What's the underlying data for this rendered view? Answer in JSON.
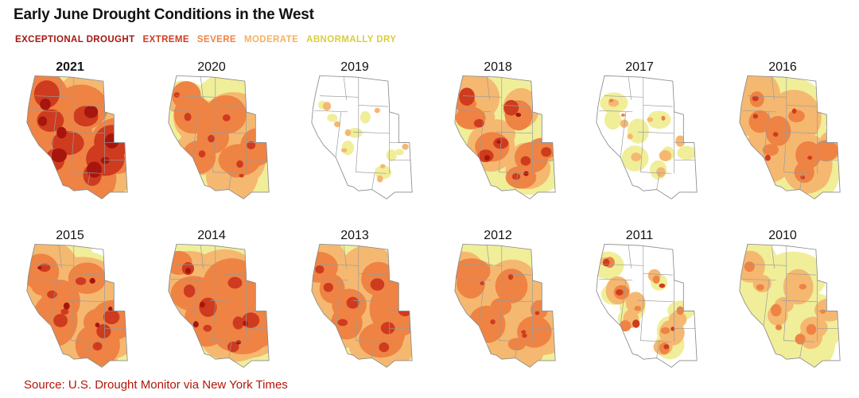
{
  "title": "Early June Drought Conditions in the West",
  "legend": [
    {
      "label": "EXCEPTIONAL DROUGHT",
      "color": "#a6160e"
    },
    {
      "label": "EXTREME",
      "color": "#cf3b1e"
    },
    {
      "label": "SEVERE",
      "color": "#ee8344"
    },
    {
      "label": "MODERATE",
      "color": "#f3b163"
    },
    {
      "label": "ABNORMALLY DRY",
      "color": "#d8ce3f"
    }
  ],
  "fill_colors": {
    "exceptional": "#a6160e",
    "extreme": "#cf3b1e",
    "severe": "#ee8344",
    "moderate": "#f5b870",
    "dry": "#f0ee99"
  },
  "years": [
    {
      "year": "2021",
      "current": true,
      "levels": {
        "dry": 0.98,
        "moderate": 0.95,
        "severe": 0.9,
        "extreme": 0.75,
        "exceptional": 0.45
      }
    },
    {
      "year": "2020",
      "current": false,
      "levels": {
        "dry": 0.85,
        "moderate": 0.7,
        "severe": 0.55,
        "extreme": 0.2,
        "exceptional": 0
      }
    },
    {
      "year": "2019",
      "current": false,
      "levels": {
        "dry": 0.14,
        "moderate": 0.08,
        "severe": 0.04,
        "extreme": 0,
        "exceptional": 0
      }
    },
    {
      "year": "2018",
      "current": false,
      "levels": {
        "dry": 0.75,
        "moderate": 0.6,
        "severe": 0.45,
        "extreme": 0.3,
        "exceptional": 0.15
      }
    },
    {
      "year": "2017",
      "current": false,
      "levels": {
        "dry": 0.22,
        "moderate": 0.12,
        "severe": 0.06,
        "extreme": 0,
        "exceptional": 0
      }
    },
    {
      "year": "2016",
      "current": false,
      "levels": {
        "dry": 0.8,
        "moderate": 0.55,
        "severe": 0.35,
        "extreme": 0.15,
        "exceptional": 0.08
      }
    },
    {
      "year": "2015",
      "current": false,
      "levels": {
        "dry": 0.95,
        "moderate": 0.85,
        "severe": 0.6,
        "extreme": 0.3,
        "exceptional": 0.18
      }
    },
    {
      "year": "2014",
      "current": false,
      "levels": {
        "dry": 0.95,
        "moderate": 0.9,
        "severe": 0.75,
        "extreme": 0.35,
        "exceptional": 0.15
      }
    },
    {
      "year": "2013",
      "current": false,
      "levels": {
        "dry": 0.98,
        "moderate": 0.9,
        "severe": 0.7,
        "extreme": 0.3,
        "exceptional": 0.1
      }
    },
    {
      "year": "2012",
      "current": false,
      "levels": {
        "dry": 0.95,
        "moderate": 0.75,
        "severe": 0.5,
        "extreme": 0.1,
        "exceptional": 0
      }
    },
    {
      "year": "2011",
      "current": false,
      "levels": {
        "dry": 0.3,
        "moderate": 0.25,
        "severe": 0.2,
        "extreme": 0.15,
        "exceptional": 0.1
      }
    },
    {
      "year": "2010",
      "current": false,
      "levels": {
        "dry": 0.6,
        "moderate": 0.3,
        "severe": 0.15,
        "extreme": 0.05,
        "exceptional": 0
      }
    }
  ],
  "source": "Source: U.S. Drought Monitor via New York Times"
}
